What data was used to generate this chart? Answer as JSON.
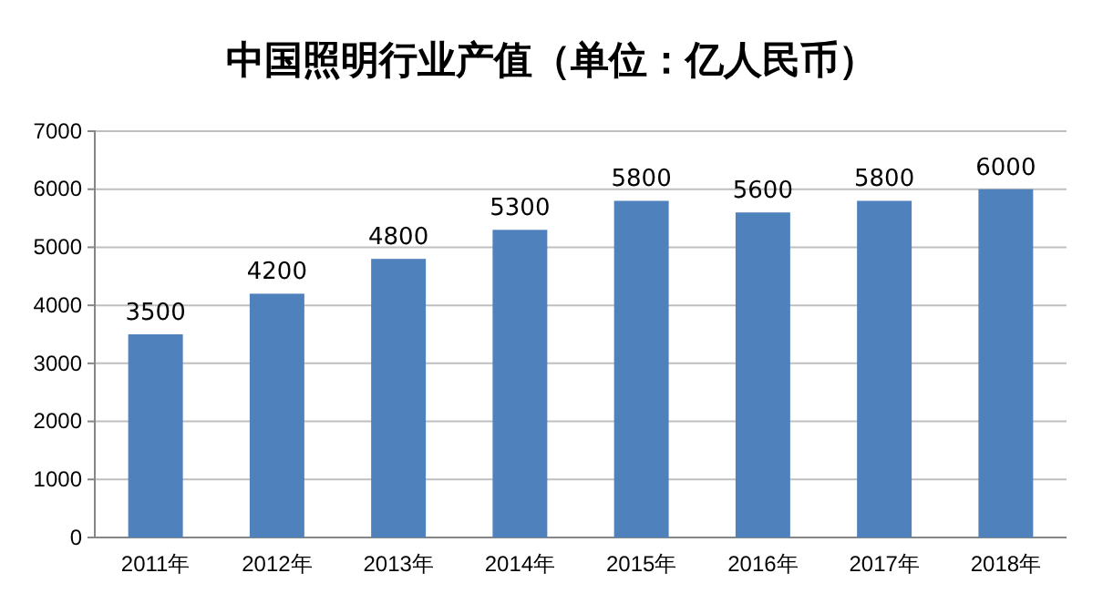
{
  "chart_data": {
    "type": "bar",
    "title": "中国照明行业产值（单位：亿人民币）",
    "categories": [
      "2011年",
      "2012年",
      "2013年",
      "2014年",
      "2015年",
      "2016年",
      "2017年",
      "2018年"
    ],
    "values": [
      3500,
      4200,
      4800,
      5300,
      5800,
      5600,
      5800,
      6000
    ],
    "color": "#4f81bd",
    "ylim": [
      0,
      7000
    ],
    "yticks": [
      0,
      1000,
      2000,
      3000,
      4000,
      5000,
      6000,
      7000
    ],
    "grid": "y",
    "data_labels": true
  }
}
